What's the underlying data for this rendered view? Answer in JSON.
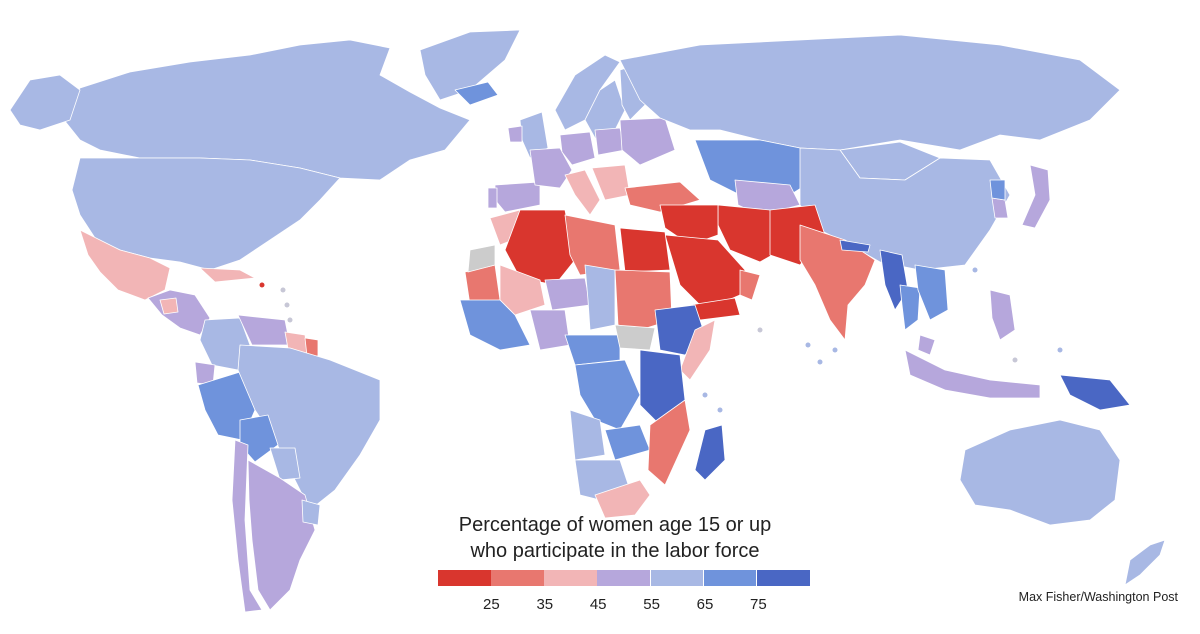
{
  "legend": {
    "title_line1": "Percentage of women age 15 or up",
    "title_line2": "who participate in the labor force",
    "colors": [
      "#d9362e",
      "#e8776f",
      "#f2b5b6",
      "#b6a7dc",
      "#a8b8e4",
      "#6f93dc",
      "#4a67c4"
    ],
    "ticks": [
      "25",
      "35",
      "45",
      "55",
      "65",
      "75"
    ]
  },
  "credit": "Max Fisher/Washington Post",
  "map": {
    "background": "#ffffff",
    "no_data_color": "#cccccc",
    "regions": [
      {
        "name": "Canada",
        "cls": 4
      },
      {
        "name": "Greenland",
        "cls": 4
      },
      {
        "name": "United States",
        "cls": 4
      },
      {
        "name": "Alaska",
        "cls": 4
      },
      {
        "name": "Mexico",
        "cls": 2
      },
      {
        "name": "Central America",
        "cls": 3
      },
      {
        "name": "Guatemala",
        "cls": 2
      },
      {
        "name": "Cuba",
        "cls": 2
      },
      {
        "name": "Colombia",
        "cls": 4
      },
      {
        "name": "Venezuela",
        "cls": 3
      },
      {
        "name": "Guyana",
        "cls": 2
      },
      {
        "name": "Suriname",
        "cls": 1
      },
      {
        "name": "Ecuador",
        "cls": 3
      },
      {
        "name": "Peru",
        "cls": 5
      },
      {
        "name": "Brazil",
        "cls": 4
      },
      {
        "name": "Bolivia",
        "cls": 5
      },
      {
        "name": "Paraguay",
        "cls": 4
      },
      {
        "name": "Chile",
        "cls": 3
      },
      {
        "name": "Argentina",
        "cls": 3
      },
      {
        "name": "Uruguay",
        "cls": 4
      },
      {
        "name": "Iceland",
        "cls": 5
      },
      {
        "name": "Norway",
        "cls": 4
      },
      {
        "name": "Sweden",
        "cls": 4
      },
      {
        "name": "Finland",
        "cls": 4
      },
      {
        "name": "United Kingdom",
        "cls": 4
      },
      {
        "name": "Ireland",
        "cls": 3
      },
      {
        "name": "Spain",
        "cls": 3
      },
      {
        "name": "Portugal",
        "cls": 3
      },
      {
        "name": "France",
        "cls": 3
      },
      {
        "name": "Germany",
        "cls": 3
      },
      {
        "name": "Poland",
        "cls": 3
      },
      {
        "name": "Italy",
        "cls": 2
      },
      {
        "name": "Balkans",
        "cls": 2
      },
      {
        "name": "Eastern Europe",
        "cls": 3
      },
      {
        "name": "Turkey",
        "cls": 1
      },
      {
        "name": "Russia",
        "cls": 4
      },
      {
        "name": "Kazakhstan",
        "cls": 5
      },
      {
        "name": "Central Asia",
        "cls": 3
      },
      {
        "name": "Mongolia",
        "cls": 4
      },
      {
        "name": "China",
        "cls": 4
      },
      {
        "name": "Korea",
        "cls": 3
      },
      {
        "name": "North Korea",
        "cls": 5
      },
      {
        "name": "Japan",
        "cls": 3
      },
      {
        "name": "Iran",
        "cls": 0
      },
      {
        "name": "Iraq Syria",
        "cls": 0
      },
      {
        "name": "Saudi Arabia",
        "cls": 0
      },
      {
        "name": "Yemen",
        "cls": 0
      },
      {
        "name": "Oman",
        "cls": 1
      },
      {
        "name": "Afghanistan Pakistan",
        "cls": 0
      },
      {
        "name": "India",
        "cls": 1
      },
      {
        "name": "Nepal",
        "cls": 6
      },
      {
        "name": "Myanmar",
        "cls": 6
      },
      {
        "name": "Thailand",
        "cls": 5
      },
      {
        "name": "Indochina",
        "cls": 5
      },
      {
        "name": "Malaysia",
        "cls": 3
      },
      {
        "name": "Indonesia",
        "cls": 3
      },
      {
        "name": "Philippines",
        "cls": 3
      },
      {
        "name": "Papua New Guinea",
        "cls": 6
      },
      {
        "name": "Australia",
        "cls": 4
      },
      {
        "name": "New Zealand",
        "cls": 4
      },
      {
        "name": "Morocco",
        "cls": 2
      },
      {
        "name": "Algeria",
        "cls": 0
      },
      {
        "name": "Libya",
        "cls": 1
      },
      {
        "name": "Egypt",
        "cls": 0
      },
      {
        "name": "Mauritania",
        "cls": 1
      },
      {
        "name": "Mali",
        "cls": 2
      },
      {
        "name": "Niger",
        "cls": 3
      },
      {
        "name": "Chad",
        "cls": 4
      },
      {
        "name": "Sudan",
        "cls": 1
      },
      {
        "name": "Ethiopia",
        "cls": 6
      },
      {
        "name": "Somalia",
        "cls": 2
      },
      {
        "name": "West Africa",
        "cls": 5
      },
      {
        "name": "Nigeria",
        "cls": 3
      },
      {
        "name": "Central Africa",
        "cls": 5
      },
      {
        "name": "DR Congo",
        "cls": 5
      },
      {
        "name": "East Africa",
        "cls": 6
      },
      {
        "name": "Angola",
        "cls": 4
      },
      {
        "name": "Zambia",
        "cls": 5
      },
      {
        "name": "Mozambique",
        "cls": 1
      },
      {
        "name": "Namibia Botswana",
        "cls": 4
      },
      {
        "name": "South Africa",
        "cls": 2
      },
      {
        "name": "Madagascar",
        "cls": 6
      },
      {
        "name": "Western Sahara",
        "cls": -1
      },
      {
        "name": "South Sudan",
        "cls": -1
      }
    ]
  }
}
